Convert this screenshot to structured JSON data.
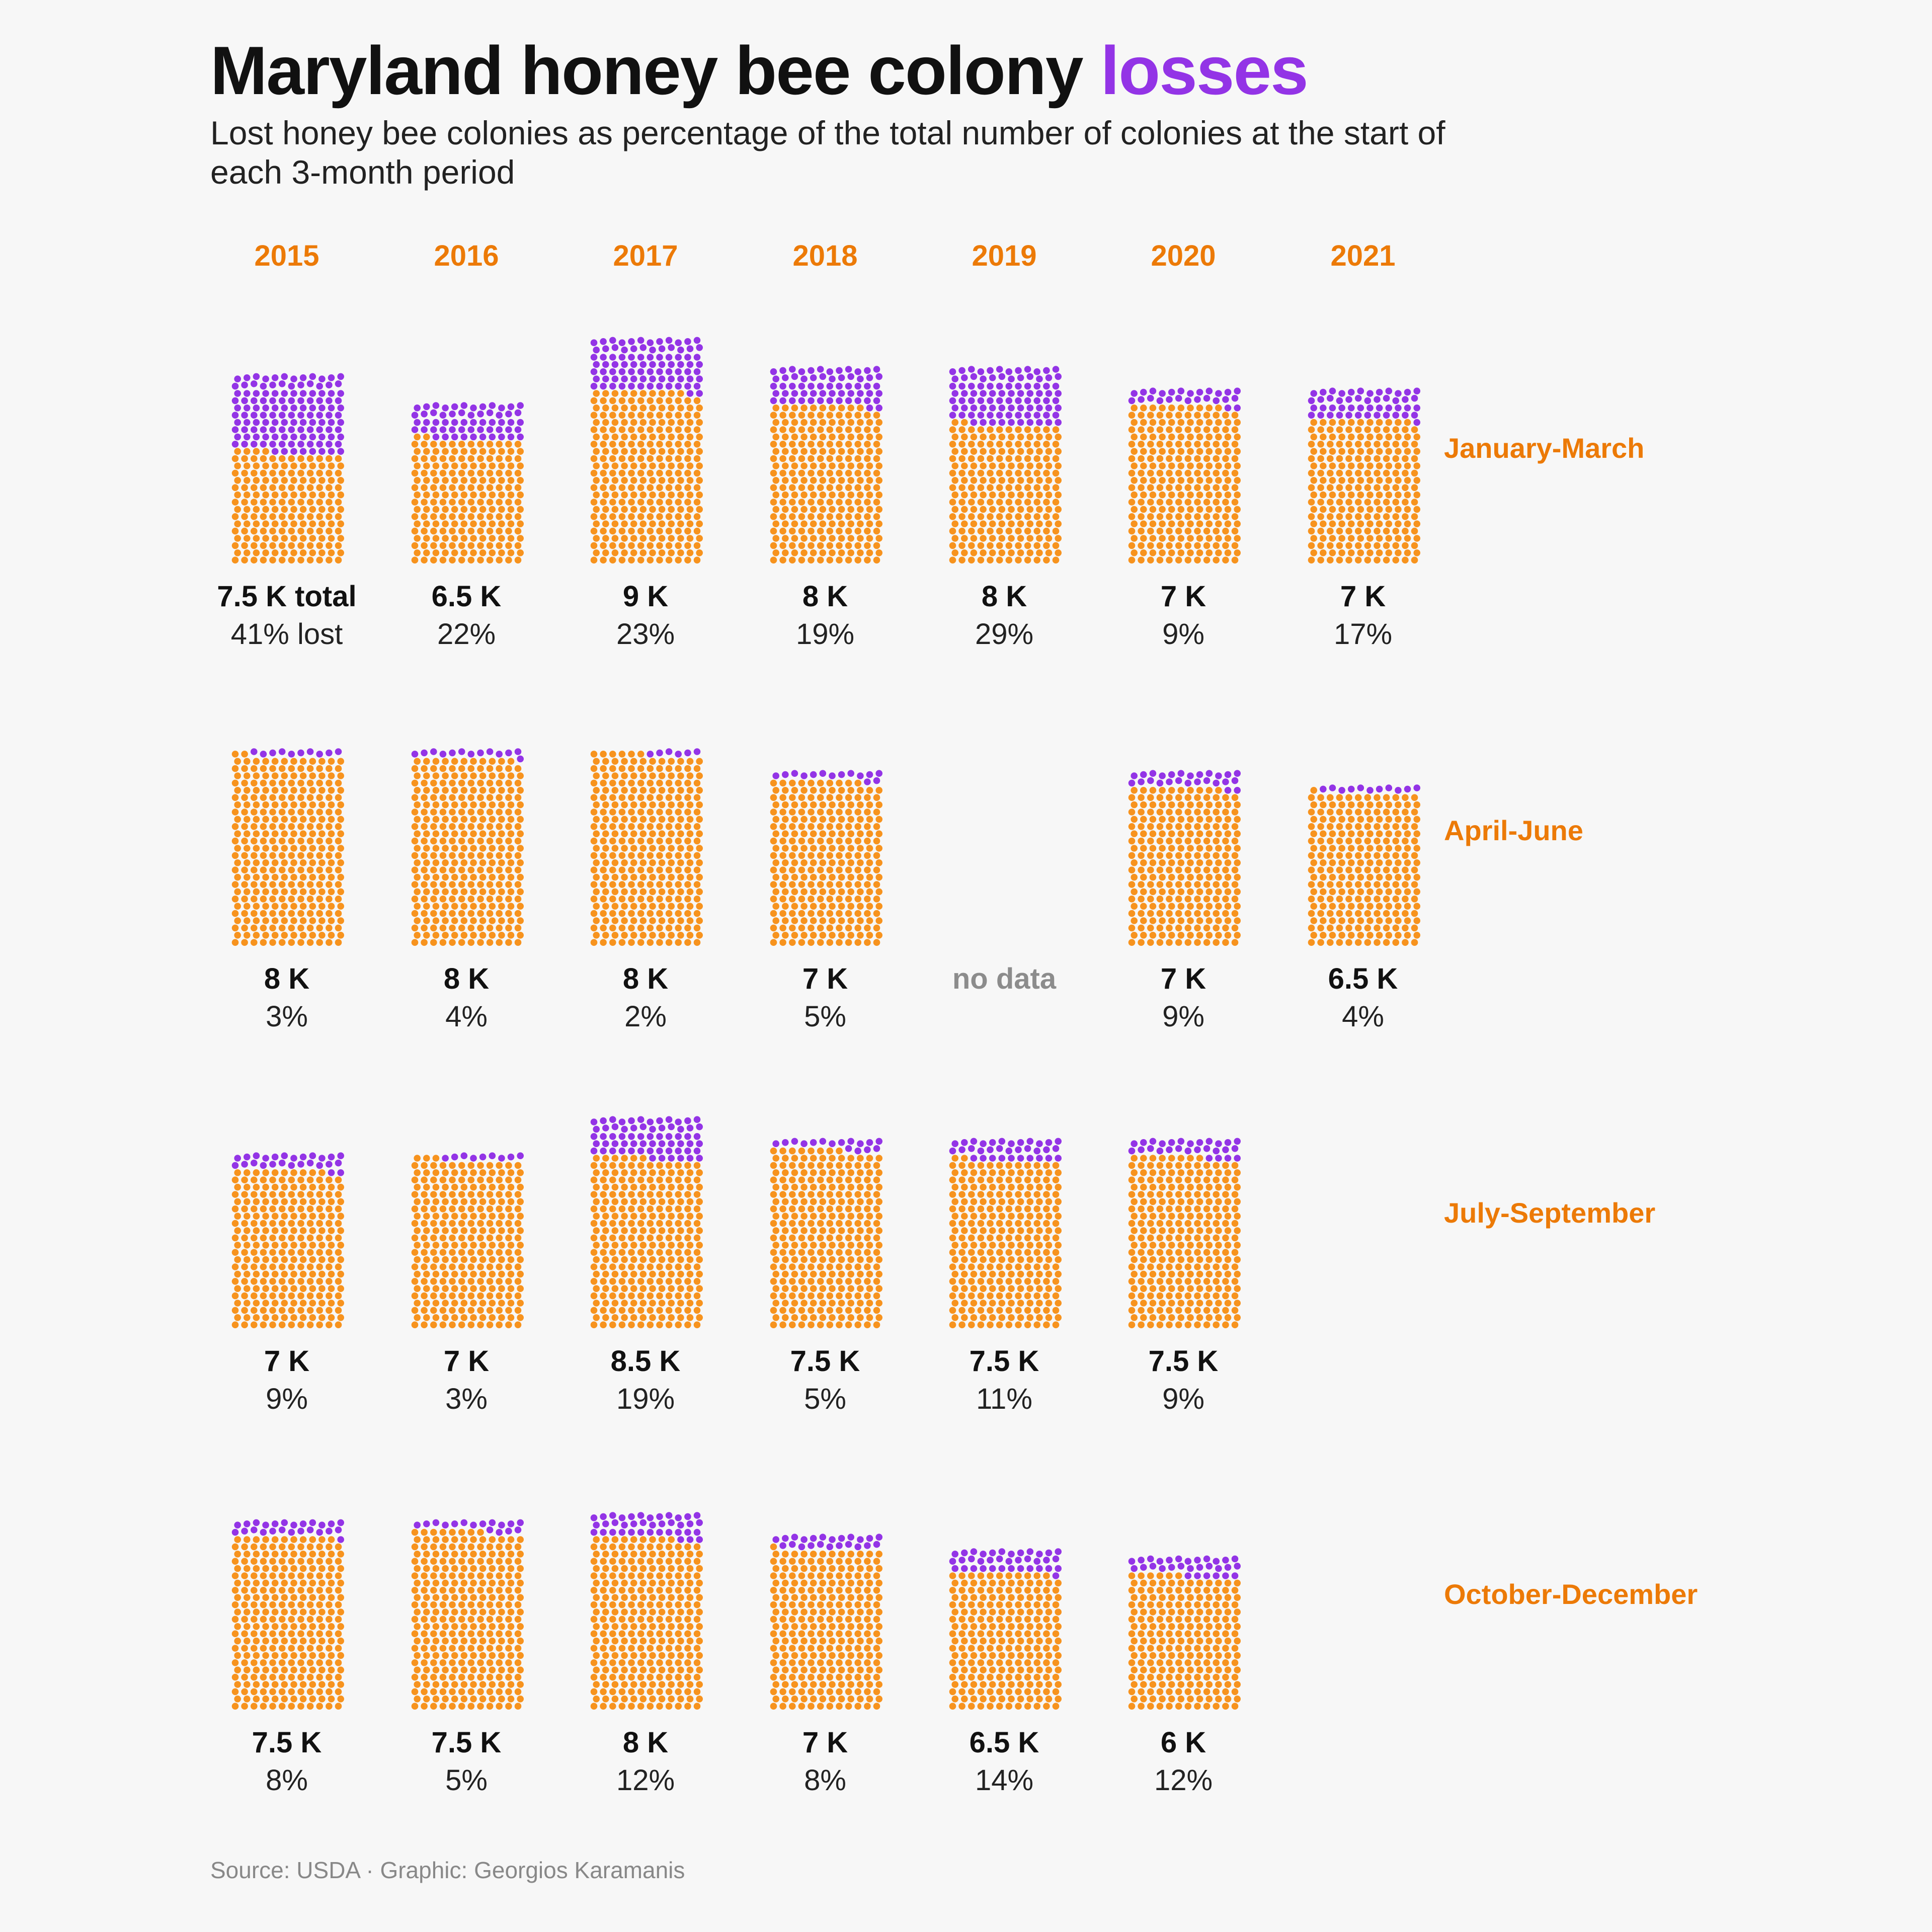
{
  "title": {
    "main": "Maryland honey bee colony ",
    "highlight": "losses"
  },
  "subtitle": "Lost honey bee colonies as percentage of the total number of colonies at the start of each 3-month period",
  "source": "Source: USDA · Graphic: Georgios Karamanis",
  "colors": {
    "kept": "#f7931e",
    "lost": "#9334e6",
    "accent": "#ec7a07",
    "text": "#111111",
    "muted": "#8c8c8c"
  },
  "chart_data": {
    "type": "waffle",
    "years": [
      "2015",
      "2016",
      "2017",
      "2018",
      "2019",
      "2020",
      "2021"
    ],
    "periods": [
      "January-March",
      "April-June",
      "July-September",
      "October-December"
    ],
    "first_cell_suffix": {
      "total": " total",
      "lost": " lost"
    },
    "no_data_label": "no data",
    "rows": [
      {
        "period": "January-March",
        "cells": [
          {
            "year": "2015",
            "total_label": "7.5 K",
            "colonies": 7500,
            "lost_pct": 41
          },
          {
            "year": "2016",
            "total_label": "6.5 K",
            "colonies": 6500,
            "lost_pct": 22
          },
          {
            "year": "2017",
            "total_label": "9 K",
            "colonies": 9000,
            "lost_pct": 23
          },
          {
            "year": "2018",
            "total_label": "8 K",
            "colonies": 8000,
            "lost_pct": 19
          },
          {
            "year": "2019",
            "total_label": "8 K",
            "colonies": 8000,
            "lost_pct": 29
          },
          {
            "year": "2020",
            "total_label": "7 K",
            "colonies": 7000,
            "lost_pct": 9
          },
          {
            "year": "2021",
            "total_label": "7 K",
            "colonies": 7000,
            "lost_pct": 17
          }
        ]
      },
      {
        "period": "April-June",
        "cells": [
          {
            "year": "2015",
            "total_label": "8 K",
            "colonies": 8000,
            "lost_pct": 3
          },
          {
            "year": "2016",
            "total_label": "8 K",
            "colonies": 8000,
            "lost_pct": 4
          },
          {
            "year": "2017",
            "total_label": "8 K",
            "colonies": 8000,
            "lost_pct": 2
          },
          {
            "year": "2018",
            "total_label": "7 K",
            "colonies": 7000,
            "lost_pct": 5
          },
          {
            "year": "2019",
            "no_data": true
          },
          {
            "year": "2020",
            "total_label": "7 K",
            "colonies": 7000,
            "lost_pct": 9
          },
          {
            "year": "2021",
            "total_label": "6.5 K",
            "colonies": 6500,
            "lost_pct": 4
          }
        ]
      },
      {
        "period": "July-September",
        "cells": [
          {
            "year": "2015",
            "total_label": "7 K",
            "colonies": 7000,
            "lost_pct": 9
          },
          {
            "year": "2016",
            "total_label": "7 K",
            "colonies": 7000,
            "lost_pct": 3
          },
          {
            "year": "2017",
            "total_label": "8.5 K",
            "colonies": 8500,
            "lost_pct": 19
          },
          {
            "year": "2018",
            "total_label": "7.5 K",
            "colonies": 7500,
            "lost_pct": 5
          },
          {
            "year": "2019",
            "total_label": "7.5 K",
            "colonies": 7500,
            "lost_pct": 11
          },
          {
            "year": "2020",
            "total_label": "7.5 K",
            "colonies": 7500,
            "lost_pct": 9
          }
        ]
      },
      {
        "period": "October-December",
        "cells": [
          {
            "year": "2015",
            "total_label": "7.5 K",
            "colonies": 7500,
            "lost_pct": 8
          },
          {
            "year": "2016",
            "total_label": "7.5 K",
            "colonies": 7500,
            "lost_pct": 5
          },
          {
            "year": "2017",
            "total_label": "8 K",
            "colonies": 8000,
            "lost_pct": 12
          },
          {
            "year": "2018",
            "total_label": "7 K",
            "colonies": 7000,
            "lost_pct": 8
          },
          {
            "year": "2019",
            "total_label": "6.5 K",
            "colonies": 6500,
            "lost_pct": 14
          },
          {
            "year": "2020",
            "total_label": "6 K",
            "colonies": 6000,
            "lost_pct": 12
          }
        ]
      }
    ]
  }
}
